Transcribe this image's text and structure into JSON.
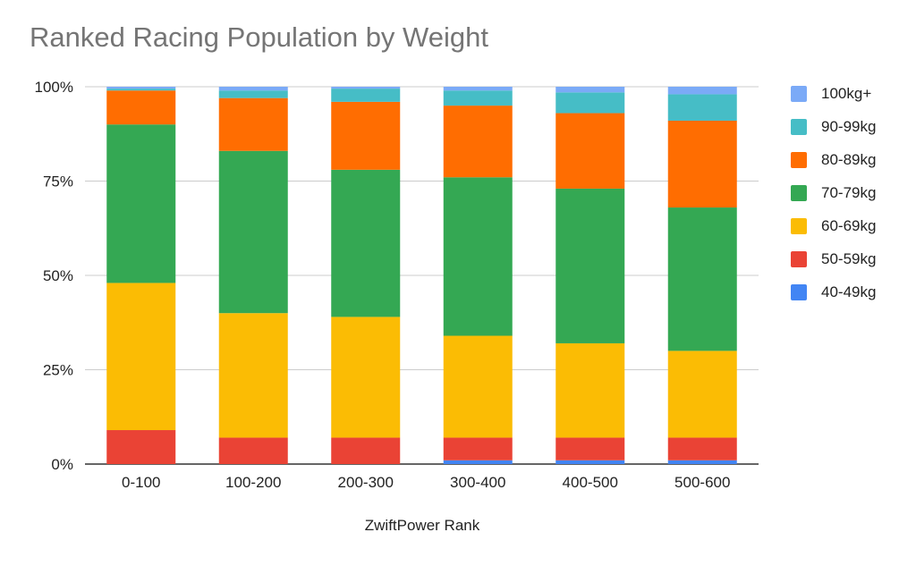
{
  "chart_data": {
    "type": "bar",
    "stacked": true,
    "stack_mode": "percent",
    "title": "Ranked Racing Population by Weight",
    "xlabel": "ZwiftPower Rank",
    "ylabel": "",
    "ylim": [
      0,
      100
    ],
    "y_ticks": [
      "0%",
      "25%",
      "50%",
      "75%",
      "100%"
    ],
    "categories": [
      "0-100",
      "100-200",
      "200-300",
      "300-400",
      "400-500",
      "500-600"
    ],
    "series": [
      {
        "name": "40-49kg",
        "color": "#4285f4",
        "values": [
          0,
          0,
          0,
          1,
          1,
          1
        ]
      },
      {
        "name": "50-59kg",
        "color": "#ea4335",
        "values": [
          9,
          7,
          7,
          6,
          6,
          6
        ]
      },
      {
        "name": "60-69kg",
        "color": "#fbbc04",
        "values": [
          39,
          33,
          32,
          27,
          25,
          23
        ]
      },
      {
        "name": "70-79kg",
        "color": "#34a853",
        "values": [
          42,
          43,
          39,
          42,
          41,
          38
        ]
      },
      {
        "name": "80-89kg",
        "color": "#ff6d01",
        "values": [
          9,
          14,
          18,
          19,
          20,
          23
        ]
      },
      {
        "name": "90-99kg",
        "color": "#46bdc6",
        "values": [
          0.5,
          2,
          3.5,
          4,
          5.5,
          7
        ]
      },
      {
        "name": "100kg+",
        "color": "#7baaf7",
        "values": [
          0.5,
          1,
          0.5,
          1,
          1.5,
          2
        ]
      }
    ],
    "legend_position": "right",
    "grid": true
  }
}
